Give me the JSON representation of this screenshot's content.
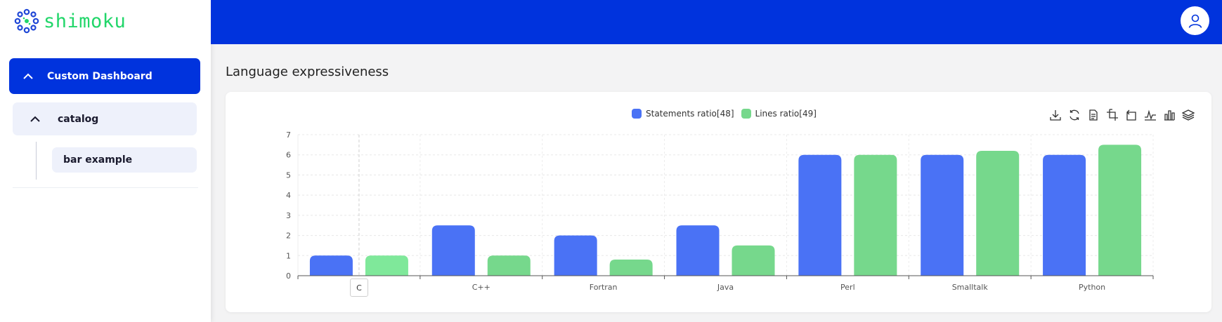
{
  "brand": {
    "name": "shimoku",
    "color": "#22d66a"
  },
  "header": {
    "color": "#0033dd",
    "avatar_icon": "user-icon"
  },
  "sidebar": {
    "items": [
      {
        "label": "Custom Dashboard",
        "icon": "chevron-up-icon",
        "expanded": true
      },
      {
        "label": "catalog",
        "icon": "chevron-up-icon",
        "expanded": true
      },
      {
        "label": "bar example"
      }
    ]
  },
  "main": {
    "title": "Language expressiveness"
  },
  "toolbox": [
    "download-icon",
    "refresh-icon",
    "data-view-icon",
    "zoom-icon",
    "zoom-reset-icon",
    "line-chart-icon",
    "bar-chart-icon",
    "stack-icon"
  ],
  "chart_data": {
    "type": "bar",
    "categories": [
      "C",
      "C++",
      "Fortran",
      "Java",
      "Perl",
      "Smalltalk",
      "Python"
    ],
    "series": [
      {
        "name": "Statements ratio[48]",
        "color": "#4a72f5",
        "values": [
          1,
          2.5,
          2,
          2.5,
          6,
          6,
          6
        ]
      },
      {
        "name": "Lines ratio[49]",
        "color": "#76d88c",
        "values": [
          1,
          1,
          0.8,
          1.5,
          6,
          6.2,
          6.5
        ]
      }
    ],
    "highlight_category": "C",
    "highlight_color": "#7fe89a",
    "yticks": [
      "0",
      "1",
      "2",
      "3",
      "4",
      "5",
      "6",
      "7"
    ],
    "ylim": [
      0,
      7
    ],
    "grid": true,
    "legend": "top-center"
  }
}
